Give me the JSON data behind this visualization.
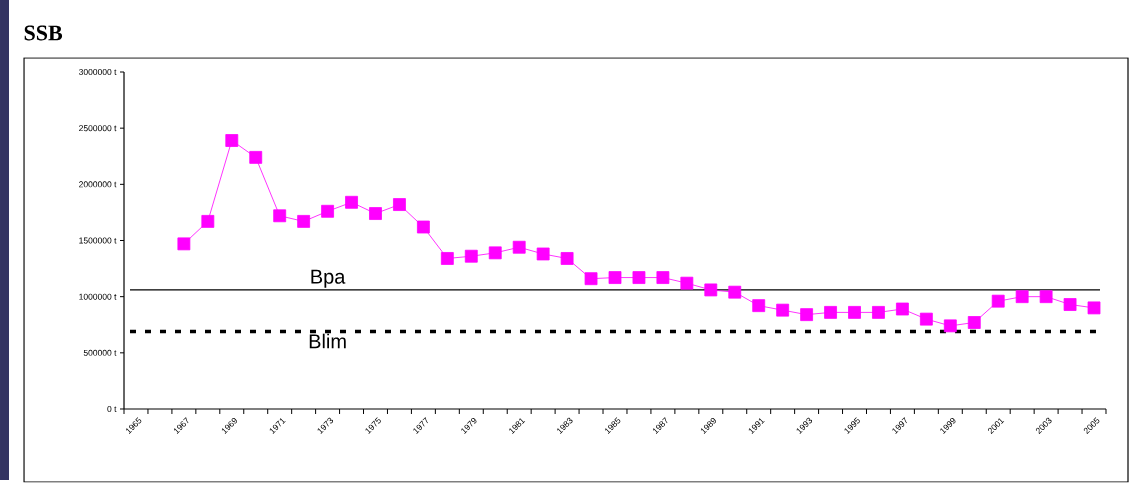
{
  "chart_data": {
    "type": "line",
    "title": "SSB",
    "categories": [
      "1965",
      null,
      "1967",
      null,
      "1969",
      null,
      "1971",
      null,
      "1973",
      null,
      "1975",
      null,
      "1977",
      null,
      "1979",
      null,
      "1981",
      null,
      "1983",
      null,
      "1985",
      null,
      "1987",
      null,
      "1989",
      null,
      "1991",
      null,
      "1993",
      null,
      "1995",
      null,
      "1997",
      null,
      "1999",
      null,
      "2001",
      null,
      "2003",
      null,
      "2005"
    ],
    "series": [
      {
        "color": "#ff00ff",
        "values": [
          null,
          null,
          1470000,
          1670000,
          2390000,
          2240000,
          1720000,
          1670000,
          1760000,
          1840000,
          1740000,
          1820000,
          1620000,
          1340000,
          1360000,
          1390000,
          1440000,
          1380000,
          1340000,
          1160000,
          1170000,
          1170000,
          1170000,
          1120000,
          1060000,
          1040000,
          920000,
          880000,
          840000,
          860000,
          860000,
          860000,
          890000,
          800000,
          740000,
          770000,
          960000,
          1000000,
          1000000,
          930000,
          900000
        ]
      }
    ],
    "marker": "square",
    "line_style": "solid",
    "ylim": [
      0,
      3000000
    ],
    "yticks": [
      {
        "value": 0,
        "label": "0 t"
      },
      {
        "value": 500000,
        "label": "500000 t"
      },
      {
        "value": 1000000,
        "label": "1000000 t"
      },
      {
        "value": 1500000,
        "label": "1500000 t"
      },
      {
        "value": 2000000,
        "label": "2000000 t"
      },
      {
        "value": 2500000,
        "label": "2500000 t"
      },
      {
        "value": 3000000,
        "label": "3000000 t"
      }
    ],
    "ref_lines": [
      {
        "axis": "y",
        "value": 1060000,
        "label": "Bpa",
        "color": "#000000",
        "line_style": "solid"
      },
      {
        "axis": "y",
        "value": 690000,
        "label": "Blim",
        "color": "#000000",
        "line_style": "dotted"
      }
    ]
  }
}
